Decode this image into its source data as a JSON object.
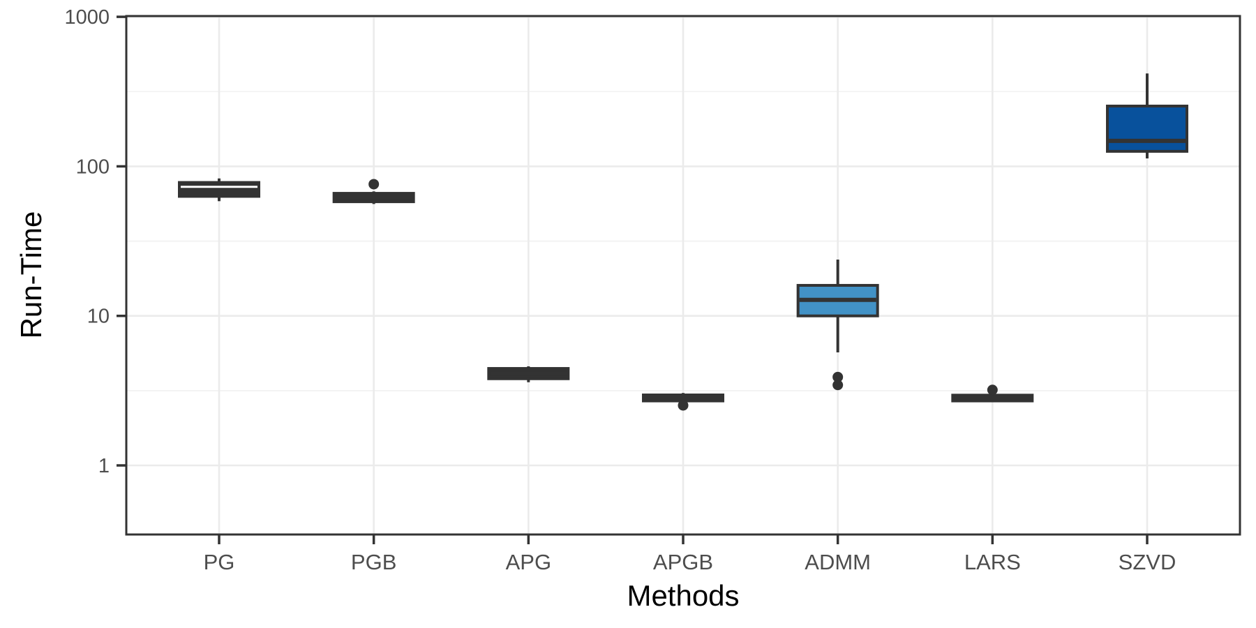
{
  "page": {
    "background": "#ffffff"
  },
  "chart_data": {
    "type": "boxplot",
    "title": "",
    "xlabel": "Methods",
    "ylabel": "Run-Time",
    "y_scale": "log10",
    "ylim": [
      0.35,
      1000
    ],
    "y_ticks": [
      1,
      10,
      100,
      1000
    ],
    "y_tick_labels": [
      "1",
      "10",
      "100",
      "1000"
    ],
    "y_minor_gridlines": [
      3.162,
      31.62,
      316.2
    ],
    "grid": "on",
    "legend": "none",
    "categories": [
      "PG",
      "PGB",
      "APG",
      "APGB",
      "ADMM",
      "LARS",
      "SZVD"
    ],
    "boxes": [
      {
        "method": "PG",
        "whisker_low": 58.5,
        "q1": 63,
        "median": 73,
        "q3": 78,
        "whisker_high": 83,
        "outliers": [],
        "fill": "#333333",
        "median_color": "#ffffff",
        "median_lw": 3
      },
      {
        "method": "PGB",
        "whisker_low": 56,
        "q1": 58,
        "median": 62,
        "q3": 66,
        "whisker_high": 68,
        "outliers": [
          76
        ],
        "fill": "#333333",
        "median_color": "#333333",
        "median_lw": 6
      },
      {
        "method": "APG",
        "whisker_low": 3.6,
        "q1": 3.8,
        "median": 4.1,
        "q3": 4.45,
        "whisker_high": 4.6,
        "outliers": [],
        "fill": "#333333",
        "median_color": "#333333",
        "median_lw": 6
      },
      {
        "method": "APGB",
        "whisker_low": 2.6,
        "q1": 2.7,
        "median": 2.82,
        "q3": 2.96,
        "whisker_high": 3.05,
        "outliers": [
          2.52
        ],
        "fill": "#333333",
        "median_color": "#333333",
        "median_lw": 6
      },
      {
        "method": "ADMM",
        "whisker_low": 5.7,
        "q1": 10,
        "median": 12.8,
        "q3": 16,
        "whisker_high": 23.8,
        "outliers": [
          3.9,
          3.45
        ],
        "fill": "#4292c6",
        "median_color": "#333333",
        "median_lw": 6
      },
      {
        "method": "LARS",
        "whisker_low": 2.65,
        "q1": 2.7,
        "median": 2.82,
        "q3": 2.95,
        "whisker_high": 3.0,
        "outliers": [
          3.2
        ],
        "fill": "#333333",
        "median_color": "#333333",
        "median_lw": 6
      },
      {
        "method": "SZVD",
        "whisker_low": 113,
        "q1": 126,
        "median": 148,
        "q3": 253,
        "whisker_high": 418,
        "outliers": [],
        "fill": "#08519c",
        "median_color": "#333333",
        "median_lw": 6
      }
    ],
    "style": {
      "panel_border_color": "#333333",
      "axis_tick_color": "#333333",
      "grid_major_color": "#ebebeb",
      "grid_minor_color": "#f2f2f2",
      "tick_label_color": "#4d4d4d",
      "box_border_color": "#333333",
      "whisker_color": "#333333",
      "outlier_color": "#333333"
    }
  }
}
